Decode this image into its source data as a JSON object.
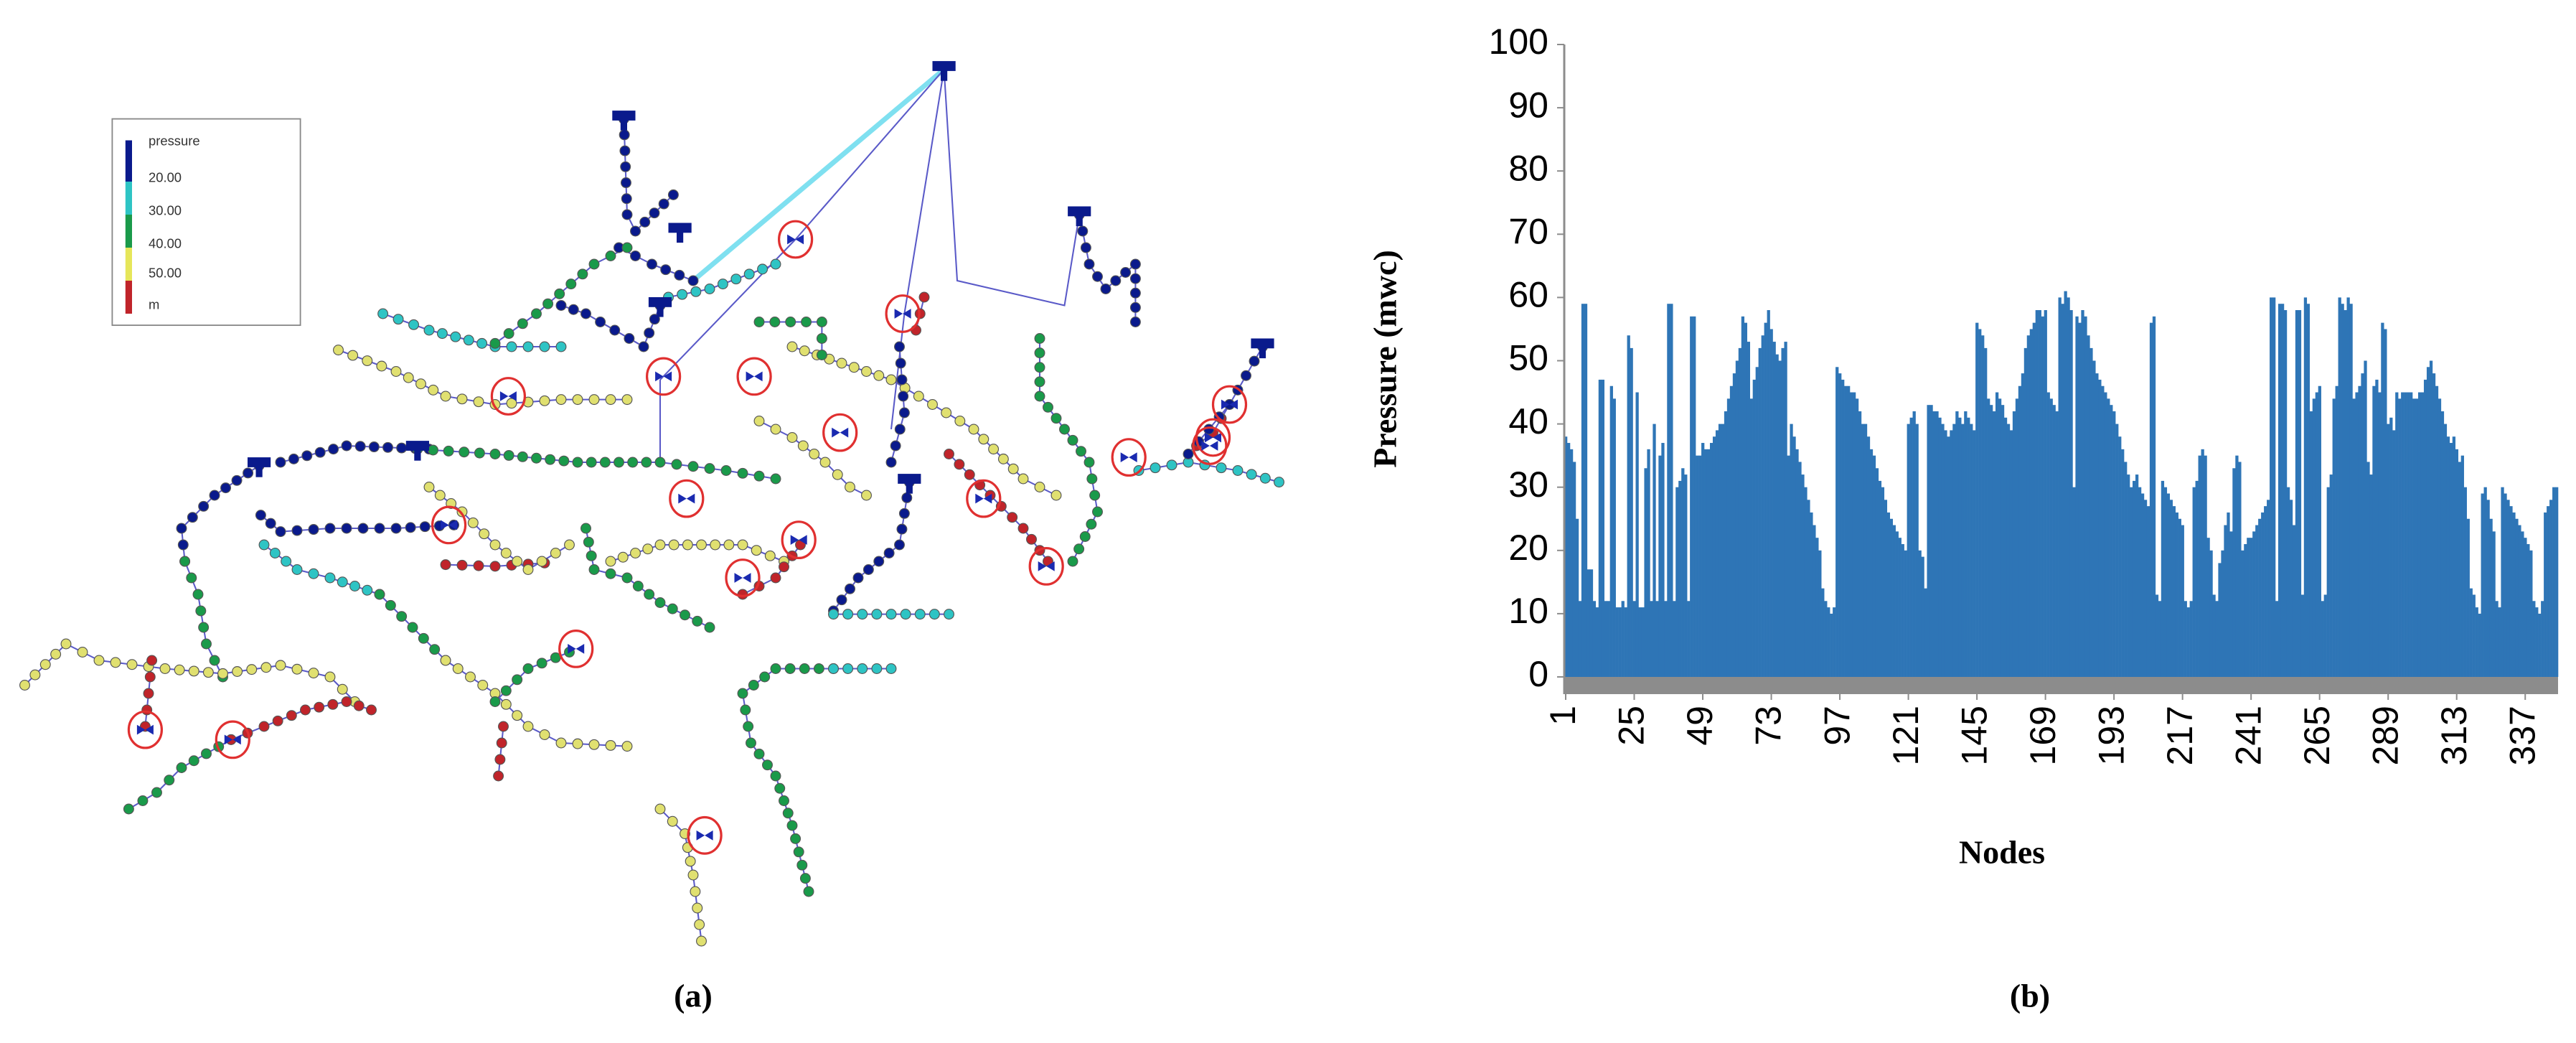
{
  "panel_labels": [
    "(a)",
    "(b)"
  ],
  "network": {
    "legend_title": "pressure",
    "legend_labels": [
      "20.00",
      "30.00",
      "40.00",
      "50.00",
      "m"
    ]
  },
  "chart_data": {
    "type": "bar",
    "xlabel": "Nodes",
    "ylabel": "Pressure  (mwc)",
    "color": "#2e75b6",
    "grid": false,
    "xlim": [
      0.5,
      348.5
    ],
    "xticks": [
      1,
      25,
      49,
      73,
      97,
      121,
      145,
      169,
      193,
      217,
      241,
      265,
      289,
      313,
      337
    ],
    "ylim": [
      0,
      100
    ],
    "yticks": [
      0,
      10,
      20,
      30,
      40,
      50,
      60,
      70,
      80,
      90,
      100
    ],
    "x": [
      1,
      2,
      3,
      4,
      5,
      6,
      7,
      8,
      9,
      10,
      11,
      12,
      13,
      14,
      15,
      16,
      17,
      18,
      19,
      20,
      21,
      22,
      23,
      24,
      25,
      26,
      27,
      28,
      29,
      30,
      31,
      32,
      33,
      34,
      35,
      36,
      37,
      38,
      39,
      40,
      41,
      42,
      43,
      44,
      45,
      46,
      47,
      48,
      49,
      50,
      51,
      52,
      53,
      54,
      55,
      56,
      57,
      58,
      59,
      60,
      61,
      62,
      63,
      64,
      65,
      66,
      67,
      68,
      69,
      70,
      71,
      72,
      73,
      74,
      75,
      76,
      77,
      78,
      79,
      80,
      81,
      82,
      83,
      84,
      85,
      86,
      87,
      88,
      89,
      90,
      91,
      92,
      93,
      94,
      95,
      96,
      97,
      98,
      99,
      100,
      101,
      102,
      103,
      104,
      105,
      106,
      107,
      108,
      109,
      110,
      111,
      112,
      113,
      114,
      115,
      116,
      117,
      118,
      119,
      120,
      121,
      122,
      123,
      124,
      125,
      126,
      127,
      128,
      129,
      130,
      131,
      132,
      133,
      134,
      135,
      136,
      137,
      138,
      139,
      140,
      141,
      142,
      143,
      144,
      145,
      146,
      147,
      148,
      149,
      150,
      151,
      152,
      153,
      154,
      155,
      156,
      157,
      158,
      159,
      160,
      161,
      162,
      163,
      164,
      165,
      166,
      167,
      168,
      169,
      170,
      171,
      172,
      173,
      174,
      175,
      176,
      177,
      178,
      179,
      180,
      181,
      182,
      183,
      184,
      185,
      186,
      187,
      188,
      189,
      190,
      191,
      192,
      193,
      194,
      195,
      196,
      197,
      198,
      199,
      200,
      201,
      202,
      203,
      204,
      205,
      206,
      207,
      208,
      209,
      210,
      211,
      212,
      213,
      214,
      215,
      216,
      217,
      218,
      219,
      220,
      221,
      222,
      223,
      224,
      225,
      226,
      227,
      228,
      229,
      230,
      231,
      232,
      233,
      234,
      235,
      236,
      237,
      238,
      239,
      240,
      241,
      242,
      243,
      244,
      245,
      246,
      247,
      248,
      249,
      250,
      251,
      252,
      253,
      254,
      255,
      256,
      257,
      258,
      259,
      260,
      261,
      262,
      263,
      264,
      265,
      266,
      267,
      268,
      269,
      270,
      271,
      272,
      273,
      274,
      275,
      276,
      277,
      278,
      279,
      280,
      281,
      282,
      283,
      284,
      285,
      286,
      287,
      288,
      289,
      290,
      291,
      292,
      293,
      294,
      295,
      296,
      297,
      298,
      299,
      300,
      301,
      302,
      303,
      304,
      305,
      306,
      307,
      308,
      309,
      310,
      311,
      312,
      313,
      314,
      315,
      316,
      317,
      318,
      319,
      320,
      321,
      322,
      323,
      324,
      325,
      326,
      327,
      328,
      329,
      330,
      331,
      332,
      333,
      334,
      335,
      336,
      337,
      338,
      339,
      340,
      341,
      342,
      343,
      344,
      345,
      346,
      347,
      348
    ],
    "values": [
      38,
      37,
      36,
      34,
      25,
      12,
      59,
      59,
      17,
      17,
      12,
      11,
      47,
      47,
      12,
      12,
      46,
      44,
      11,
      11,
      12,
      11,
      54,
      52,
      12,
      45,
      11,
      11,
      33,
      36,
      12,
      40,
      12,
      35,
      37,
      12,
      59,
      59,
      12,
      30,
      31,
      33,
      32,
      12,
      57,
      57,
      35,
      35,
      37,
      36,
      36,
      37,
      38,
      39,
      40,
      40,
      42,
      44,
      46,
      48,
      50,
      52,
      57,
      56,
      53,
      44,
      47,
      49,
      52,
      54,
      56,
      58,
      55,
      53,
      51,
      50,
      52,
      53,
      35,
      40,
      38,
      36,
      34,
      32,
      30,
      28,
      26,
      24,
      22,
      20,
      14,
      12,
      11,
      10,
      11,
      49,
      48,
      47,
      46,
      46,
      45,
      45,
      44,
      42,
      40,
      40,
      38,
      36,
      35,
      33,
      31,
      30,
      28,
      26,
      25,
      24,
      23,
      22,
      21,
      20,
      40,
      41,
      42,
      40,
      20,
      19,
      14,
      43,
      43,
      42,
      42,
      41,
      40,
      39,
      38,
      39,
      40,
      42,
      41,
      40,
      42,
      41,
      40,
      39,
      56,
      55,
      54,
      52,
      44,
      43,
      42,
      45,
      44,
      43,
      41,
      40,
      39,
      42,
      44,
      46,
      48,
      52,
      54,
      55,
      56,
      58,
      58,
      57,
      58,
      45,
      44,
      43,
      42,
      60,
      59,
      61,
      60,
      58,
      30,
      57,
      56,
      58,
      57,
      54,
      52,
      50,
      48,
      47,
      46,
      45,
      44,
      43,
      42,
      40,
      38,
      36,
      34,
      32,
      30,
      31,
      32,
      30,
      29,
      28,
      27,
      56,
      57,
      13,
      12,
      31,
      30,
      29,
      28,
      27,
      26,
      25,
      24,
      12,
      11,
      12,
      30,
      31,
      35,
      36,
      35,
      22,
      20,
      13,
      12,
      18,
      20,
      24,
      26,
      23,
      33,
      35,
      34,
      20,
      21,
      22,
      22,
      23,
      24,
      25,
      26,
      27,
      28,
      60,
      60,
      12,
      59,
      59,
      58,
      30,
      28,
      24,
      58,
      58,
      13,
      60,
      59,
      42,
      44,
      45,
      46,
      12,
      13,
      30,
      32,
      44,
      46,
      60,
      59,
      58,
      60,
      59,
      44,
      45,
      46,
      48,
      50,
      34,
      32,
      46,
      47,
      45,
      56,
      55,
      40,
      41,
      39,
      45,
      44,
      45,
      45,
      45,
      45,
      44,
      44,
      45,
      45,
      47,
      49,
      50,
      48,
      46,
      44,
      42,
      40,
      38,
      37,
      38,
      36,
      34,
      35,
      30,
      25,
      14,
      13,
      11,
      10,
      29,
      30,
      28,
      25,
      23,
      12,
      11,
      30,
      29,
      28,
      27,
      26,
      25,
      24,
      23,
      22,
      21,
      20,
      12,
      11,
      10,
      12,
      26,
      27,
      28,
      30,
      30
    ]
  }
}
